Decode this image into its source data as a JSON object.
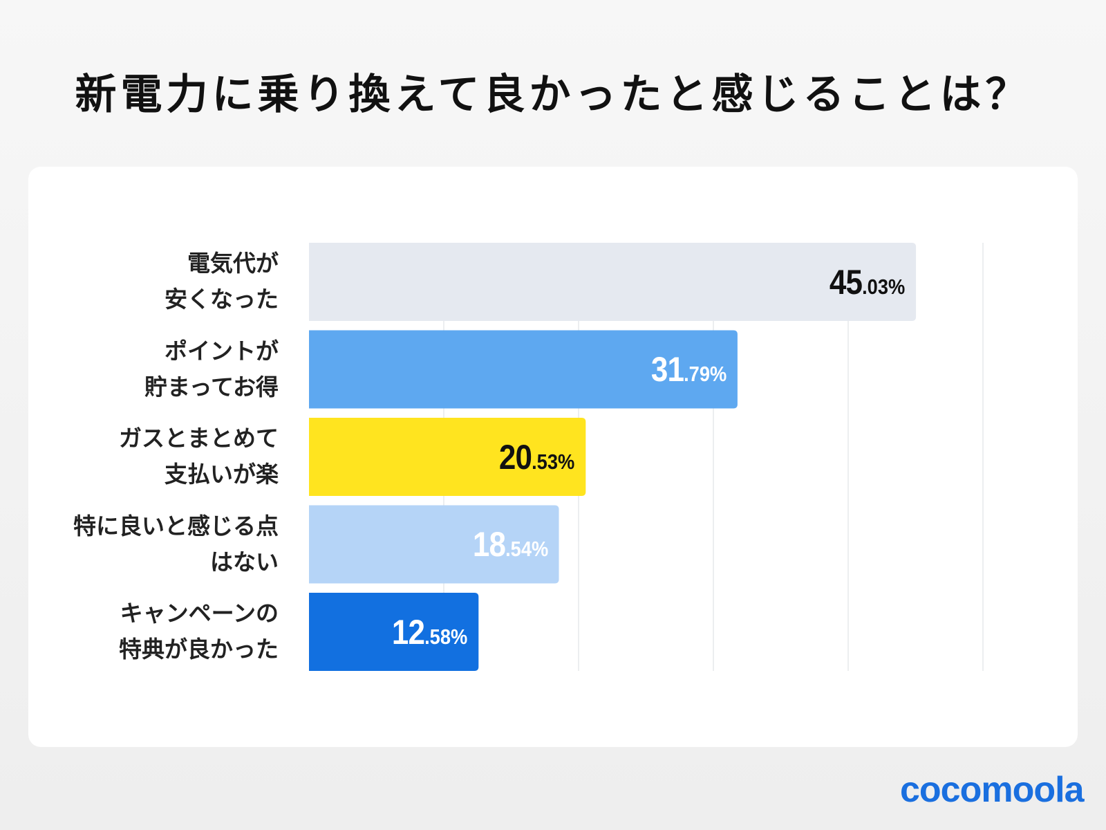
{
  "chart_data": {
    "type": "bar",
    "orientation": "horizontal",
    "title": "新電力に乗り換えて良かったと感じることは？",
    "categories": [
      "電気代が\n安くなった",
      "ポイントが\n貯まってお得",
      "ガスとまとめて\n支払いが楽",
      "特に良いと感じる点\nはない",
      "キャンペーンの\n特典が良かった"
    ],
    "values": [
      45.03,
      31.79,
      20.53,
      18.54,
      12.58
    ],
    "value_labels": [
      {
        "int": "45",
        "dec": ".03%"
      },
      {
        "int": "31",
        "dec": ".79%"
      },
      {
        "int": "20",
        "dec": ".53%"
      },
      {
        "int": "18",
        "dec": ".54%"
      },
      {
        "int": "12",
        "dec": ".58%"
      }
    ],
    "bar_colors": [
      "#e5e9f0",
      "#5ea8f0",
      "#ffe41f",
      "#b5d4f7",
      "#1270e0"
    ],
    "label_colors": [
      "#111111",
      "#ffffff",
      "#111111",
      "#ffffff",
      "#ffffff"
    ],
    "xlim": [
      0,
      50
    ],
    "grid": true,
    "grid_step": 10,
    "legend": "none"
  },
  "brand": {
    "logo_text": "cocomoola",
    "color": "#1a6fdf"
  }
}
